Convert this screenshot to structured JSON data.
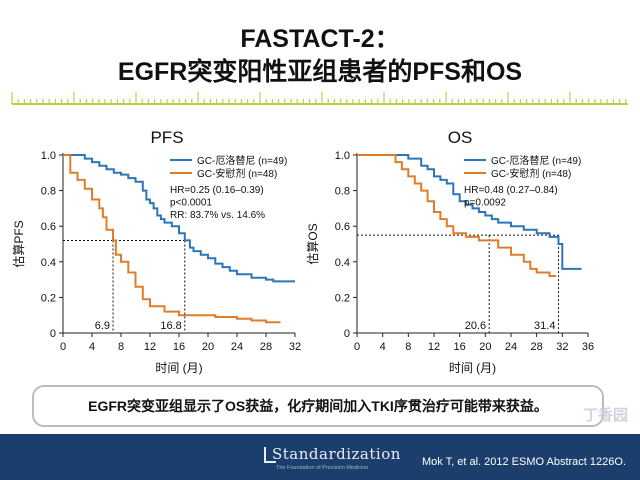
{
  "title_line1": "FASTACT-2：",
  "title_line2": "EGFR突变阳性亚组患者的PFS和OS",
  "colors": {
    "erlotinib": "#2e75b6",
    "placebo": "#e07d2a",
    "footer": "#1c3e6d",
    "ruler": "#bfcf45"
  },
  "chart_data": [
    {
      "type": "line",
      "title": "PFS",
      "xlabel": "时间 (月)",
      "ylabel": "估算PFS",
      "xlim": [
        0,
        32
      ],
      "ylim": [
        0,
        1.0
      ],
      "xticks": [
        "0",
        "4",
        "8",
        "12",
        "16",
        "20",
        "24",
        "28",
        "32"
      ],
      "yticks": [
        "0",
        "0.2",
        "0.4",
        "0.6",
        "0.8",
        "1.0"
      ],
      "grid": false,
      "legend_position": "top-right",
      "series": [
        {
          "name": "GC-厄洛替尼 (n=49)",
          "color": "#2e75b6",
          "points": [
            [
              0,
              1.0
            ],
            [
              2,
              1.0
            ],
            [
              3,
              0.98
            ],
            [
              4,
              0.96
            ],
            [
              5,
              0.94
            ],
            [
              6,
              0.92
            ],
            [
              7,
              0.9
            ],
            [
              8,
              0.89
            ],
            [
              9,
              0.87
            ],
            [
              10,
              0.85
            ],
            [
              11,
              0.8
            ],
            [
              11.5,
              0.75
            ],
            [
              12,
              0.73
            ],
            [
              12.5,
              0.7
            ],
            [
              13,
              0.66
            ],
            [
              13.5,
              0.64
            ],
            [
              14,
              0.62
            ],
            [
              15,
              0.6
            ],
            [
              16,
              0.56
            ],
            [
              16.8,
              0.52
            ],
            [
              17.5,
              0.48
            ],
            [
              18,
              0.46
            ],
            [
              19,
              0.44
            ],
            [
              20,
              0.42
            ],
            [
              21,
              0.39
            ],
            [
              22,
              0.37
            ],
            [
              23,
              0.35
            ],
            [
              24,
              0.33
            ],
            [
              26,
              0.31
            ],
            [
              28,
              0.3
            ],
            [
              29,
              0.29
            ],
            [
              32,
              0.29
            ]
          ]
        },
        {
          "name": "GC-安慰剂 (n=48)",
          "color": "#e07d2a",
          "points": [
            [
              0,
              1.0
            ],
            [
              1,
              0.9
            ],
            [
              2,
              0.86
            ],
            [
              3,
              0.81
            ],
            [
              4,
              0.75
            ],
            [
              5,
              0.7
            ],
            [
              5.5,
              0.65
            ],
            [
              6,
              0.58
            ],
            [
              6.9,
              0.52
            ],
            [
              7.3,
              0.44
            ],
            [
              8,
              0.4
            ],
            [
              9,
              0.34
            ],
            [
              10,
              0.26
            ],
            [
              11,
              0.19
            ],
            [
              12,
              0.15
            ],
            [
              14,
              0.12
            ],
            [
              16,
              0.1
            ],
            [
              20,
              0.1
            ],
            [
              21,
              0.09
            ],
            [
              24,
              0.08
            ],
            [
              26,
              0.07
            ],
            [
              28,
              0.06
            ],
            [
              30,
              0.06
            ]
          ]
        }
      ],
      "stats": [
        "HR=0.25 (0.16–0.39)",
        "p<0.0001",
        "RR: 83.7% vs. 14.6%"
      ],
      "median_y": 0.52,
      "medians": [
        {
          "x": 6.9,
          "label": "6.9"
        },
        {
          "x": 16.8,
          "label": "16.8"
        }
      ]
    },
    {
      "type": "line",
      "title": "OS",
      "xlabel": "时间 (月)",
      "ylabel": "估算OS",
      "xlim": [
        0,
        36
      ],
      "ylim": [
        0,
        1.0
      ],
      "xticks": [
        "0",
        "4",
        "8",
        "12",
        "16",
        "20",
        "24",
        "28",
        "32",
        "36"
      ],
      "yticks": [
        "0",
        "0.2",
        "0.4",
        "0.6",
        "0.8",
        "1.0"
      ],
      "grid": false,
      "legend_position": "top-right",
      "series": [
        {
          "name": "GC-厄洛替尼 (n=49)",
          "color": "#2e75b6",
          "points": [
            [
              0,
              1.0
            ],
            [
              6,
              1.0
            ],
            [
              8,
              0.98
            ],
            [
              10,
              0.94
            ],
            [
              11,
              0.92
            ],
            [
              12,
              0.88
            ],
            [
              13,
              0.86
            ],
            [
              14,
              0.84
            ],
            [
              15,
              0.78
            ],
            [
              16,
              0.74
            ],
            [
              17,
              0.72
            ],
            [
              18,
              0.7
            ],
            [
              19,
              0.68
            ],
            [
              20,
              0.66
            ],
            [
              21,
              0.64
            ],
            [
              22,
              0.62
            ],
            [
              24,
              0.6
            ],
            [
              26,
              0.58
            ],
            [
              28,
              0.56
            ],
            [
              30,
              0.54
            ],
            [
              31.4,
              0.5
            ],
            [
              32,
              0.36
            ],
            [
              33,
              0.36
            ],
            [
              35,
              0.36
            ]
          ]
        },
        {
          "name": "GC-安慰剂 (n=48)",
          "color": "#e07d2a",
          "points": [
            [
              0,
              1.0
            ],
            [
              4,
              1.0
            ],
            [
              6,
              0.96
            ],
            [
              7,
              0.92
            ],
            [
              8,
              0.88
            ],
            [
              9,
              0.84
            ],
            [
              10,
              0.8
            ],
            [
              11,
              0.74
            ],
            [
              12,
              0.68
            ],
            [
              13,
              0.64
            ],
            [
              14,
              0.6
            ],
            [
              15,
              0.56
            ],
            [
              17,
              0.54
            ],
            [
              19,
              0.52
            ],
            [
              20.6,
              0.52
            ],
            [
              22,
              0.48
            ],
            [
              24,
              0.44
            ],
            [
              26,
              0.4
            ],
            [
              27,
              0.36
            ],
            [
              28,
              0.34
            ],
            [
              30,
              0.32
            ],
            [
              31,
              0.32
            ]
          ]
        }
      ],
      "stats": [
        "HR=0.48 (0.27–0.84)",
        "p=0.0092"
      ],
      "median_y": 0.55,
      "medians": [
        {
          "x": 20.6,
          "label": "20.6"
        },
        {
          "x": 31.4,
          "label": "31.4"
        }
      ]
    }
  ],
  "callout_text": "EGFR突变亚组显示了OS获益，化疗期间加入TKI序贯治疗可能带来获益。",
  "footer": {
    "logo_main": "Standardization",
    "logo_sub": "The Foundation of Precision Medicine",
    "citation": "Mok T, et al. 2012 ESMO Abstract 1226O.",
    "watermark": "丁香园"
  }
}
